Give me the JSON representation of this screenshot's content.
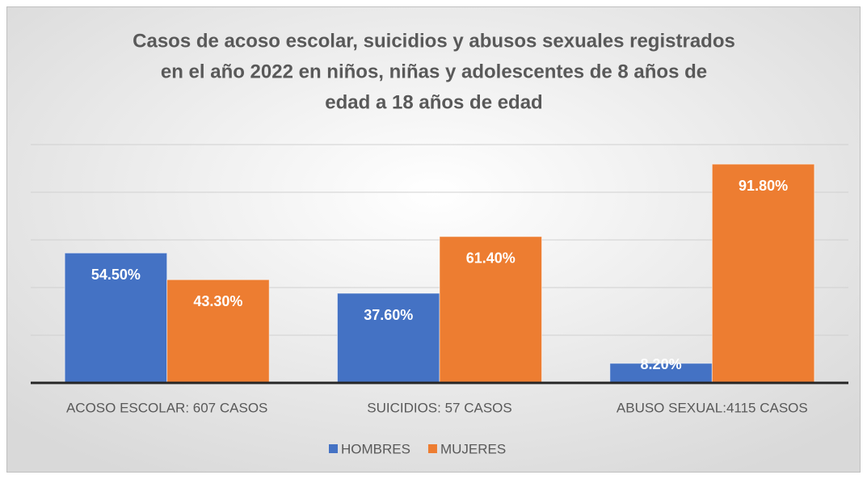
{
  "chart_data": {
    "type": "bar",
    "title": [
      "Casos de acoso escolar, suicidios y abusos sexuales registrados",
      "en el año 2022 en niños, niñas y adolescentes de 8 años de",
      "edad a 18 años de edad"
    ],
    "categories": [
      "ACOSO ESCOLAR: 607 CASOS",
      "SUICIDIOS: 57 CASOS",
      "ABUSO SEXUAL:4115 CASOS"
    ],
    "series": [
      {
        "name": "HOMBRES",
        "color": "#4472c4",
        "values": [
          54.5,
          37.6,
          8.2
        ],
        "value_labels": [
          "54.50%",
          "37.60%",
          "8.20%"
        ]
      },
      {
        "name": "MUJERES",
        "color": "#ed7d31",
        "values": [
          43.3,
          61.4,
          91.8
        ],
        "value_labels": [
          "43.30%",
          "61.40%",
          "91.80%"
        ]
      }
    ],
    "ylim": [
      0,
      100
    ],
    "yticks": [
      0,
      20,
      40,
      60,
      80,
      100
    ],
    "grid": true,
    "legend": "bottom"
  }
}
